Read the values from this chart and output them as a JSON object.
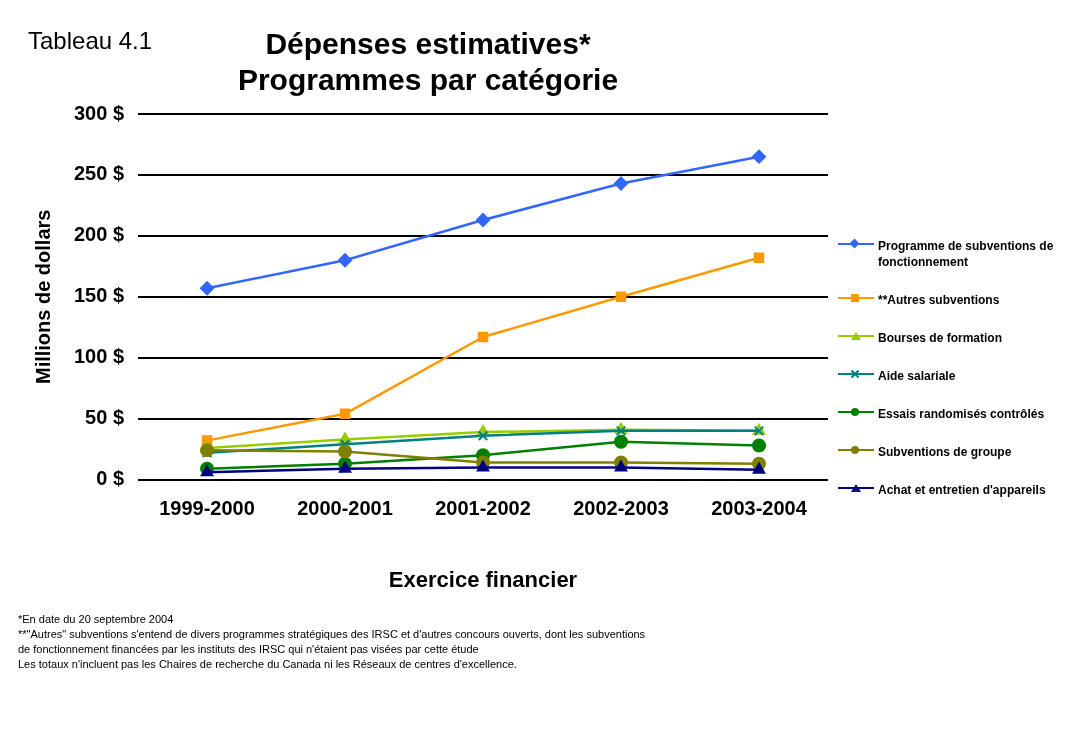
{
  "chart_data": {
    "type": "line",
    "title": "Dépenses estimatives*\nProgrammes par catégorie",
    "xlabel": "Exercice financier",
    "ylabel": "Millions de dollars",
    "categories": [
      "1999-2000",
      "2000-2001",
      "2001-2002",
      "2002-2003",
      "2003-2004"
    ],
    "series": [
      {
        "name": "Programme de subventions de fonctionnement",
        "color": "#3366ff",
        "marker": "diamond",
        "values": [
          157,
          180,
          213,
          243,
          265
        ]
      },
      {
        "name": "**Autres subventions",
        "color": "#ff9900",
        "marker": "square",
        "values": [
          32,
          54,
          117,
          150,
          182
        ]
      },
      {
        "name": "Bourses de formation",
        "color": "#99cc00",
        "marker": "triangle",
        "values": [
          26,
          33,
          39,
          41,
          40
        ]
      },
      {
        "name": "Aide salariale",
        "color": "#008080",
        "marker": "cross",
        "values": [
          22,
          29,
          36,
          40,
          40
        ]
      },
      {
        "name": "Essais randomisés contrôlés",
        "color": "#008000",
        "marker": "circle",
        "values": [
          9,
          13,
          20,
          31,
          28
        ]
      },
      {
        "name": "Subventions de groupe",
        "color": "#808000",
        "marker": "circle",
        "values": [
          24,
          23,
          14,
          14,
          13
        ]
      },
      {
        "name": "Achat et entretien d'appareils",
        "color": "#000080",
        "marker": "triangle",
        "values": [
          6,
          9,
          10,
          10,
          8
        ]
      }
    ],
    "ylim": [
      0,
      300
    ],
    "yticks": [
      {
        "value": 0,
        "label": "0 $"
      },
      {
        "value": 50,
        "label": "50 $"
      },
      {
        "value": 100,
        "label": "100 $"
      },
      {
        "value": 150,
        "label": "150 $"
      },
      {
        "value": 200,
        "label": "200 $"
      },
      {
        "value": 250,
        "label": "250 $"
      },
      {
        "value": 300,
        "label": "300 $"
      }
    ],
    "grid": "y",
    "legend": "right",
    "line_style": "solid",
    "annotations": [
      "Tableau 4.1",
      "*En date du 20 septembre 2004",
      "**\"Autres\" subventions s'entend de divers programmes stratégiques des IRSC et d'autres concours ouverts, dont les subventions de fonctionnement financées par les instituts des IRSC qui n'étaient pas visées par cette étude",
      "Les totaux n'incluent pas les Chaires de recherche du Canada ni les Réseaux de centres d'excellence."
    ]
  }
}
